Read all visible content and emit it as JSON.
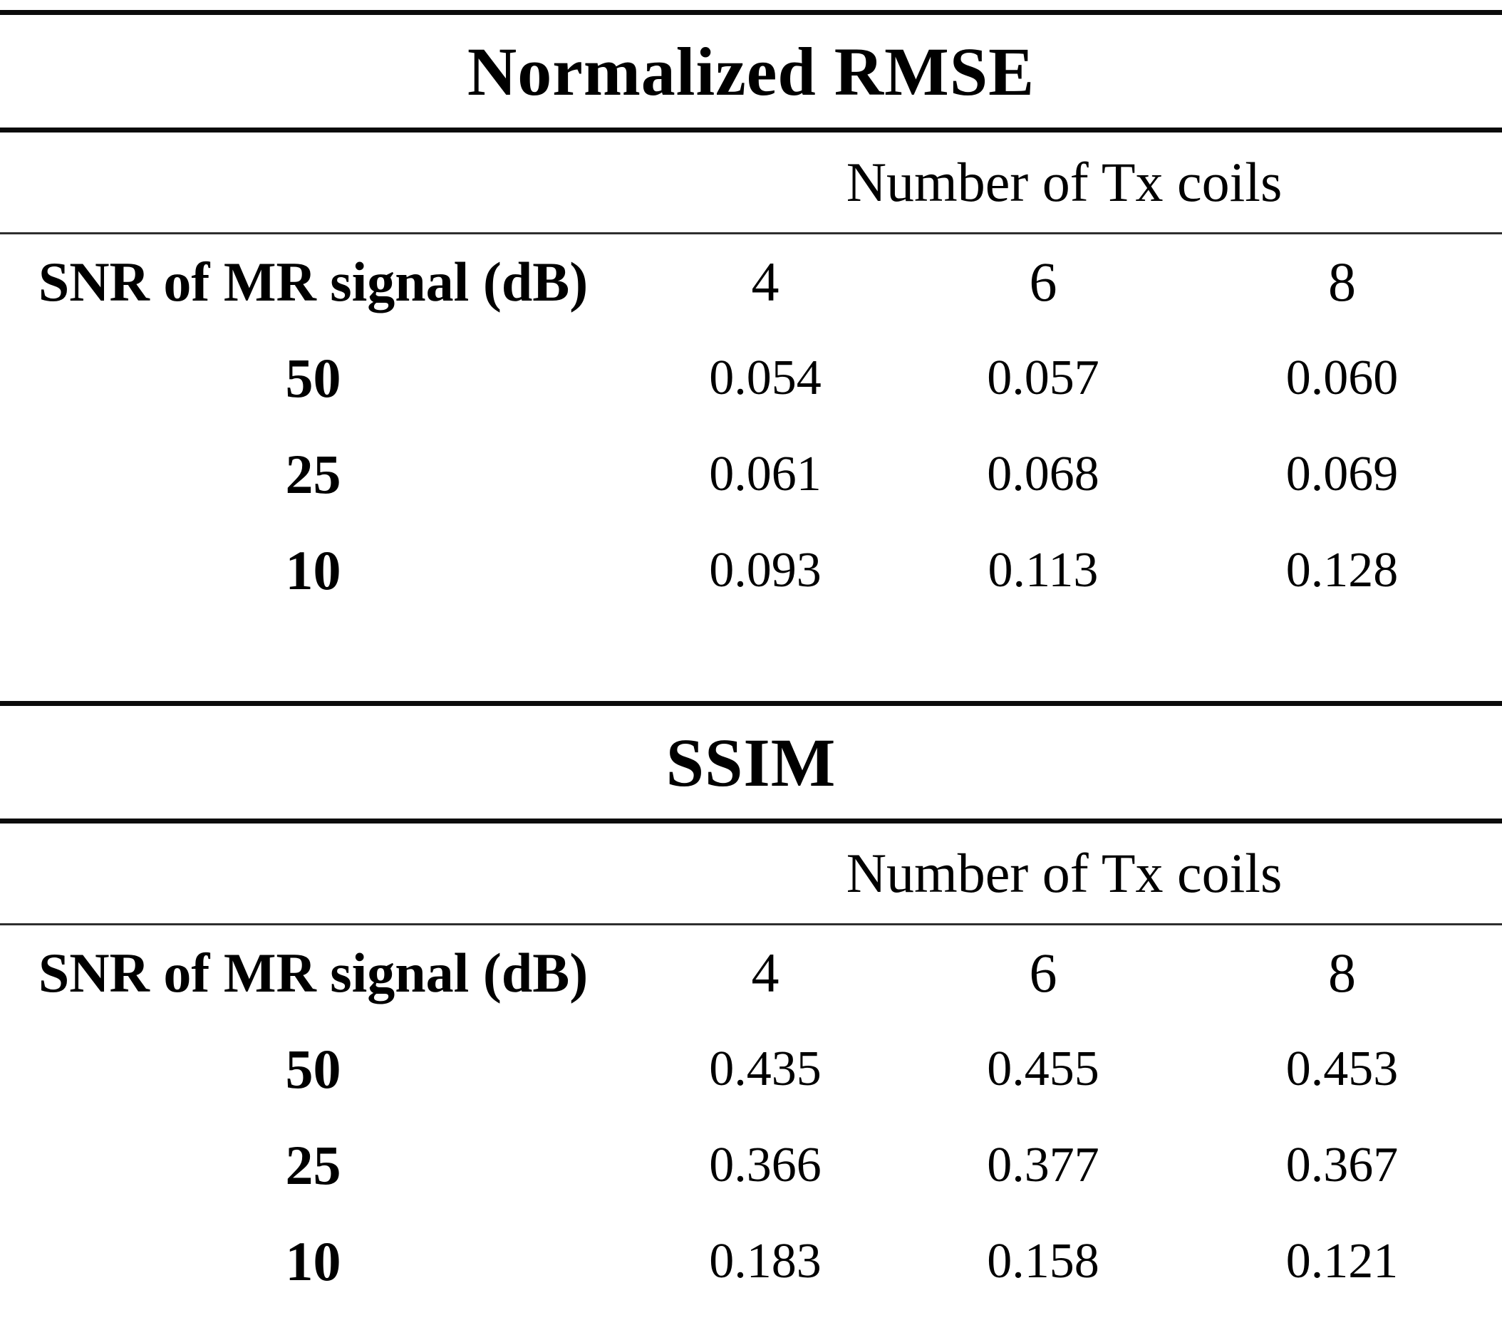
{
  "page": {
    "background": "#ffffff",
    "text_color": "#000000"
  },
  "tables": [
    {
      "title": "Normalized RMSE",
      "columns_group_label": "Number of Tx coils",
      "row_axis_label": "SNR of MR signal (dB)",
      "column_headers": [
        "4",
        "6",
        "8"
      ],
      "rows": [
        {
          "label": "50",
          "values": [
            "0.054",
            "0.057",
            "0.060"
          ]
        },
        {
          "label": "25",
          "values": [
            "0.061",
            "0.068",
            "0.069"
          ]
        },
        {
          "label": "10",
          "values": [
            "0.093",
            "0.113",
            "0.128"
          ]
        }
      ]
    },
    {
      "title": "SSIM",
      "columns_group_label": "Number of Tx coils",
      "row_axis_label": "SNR of MR signal (dB)",
      "column_headers": [
        "4",
        "6",
        "8"
      ],
      "rows": [
        {
          "label": "50",
          "values": [
            "0.435",
            "0.455",
            "0.453"
          ]
        },
        {
          "label": "25",
          "values": [
            "0.366",
            "0.377",
            "0.367"
          ]
        },
        {
          "label": "10",
          "values": [
            "0.183",
            "0.158",
            "0.121"
          ]
        }
      ]
    }
  ]
}
